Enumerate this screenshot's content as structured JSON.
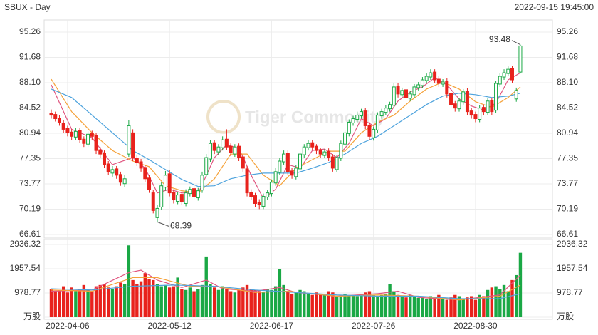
{
  "chart_data": [
    {
      "type": "candlestick",
      "title": "SBUX - Day",
      "subtitle": "2022-09-15 19:45:00",
      "watermark": "Tiger Commodity",
      "up_color": "#1aa845",
      "down_color": "#e8221c",
      "categories": [
        null,
        null,
        null,
        null,
        "2022-04-06",
        null,
        null,
        null,
        null,
        null,
        null,
        null,
        null,
        null,
        null,
        null,
        null,
        null,
        null,
        null,
        null,
        null,
        null,
        null,
        null,
        null,
        null,
        null,
        null,
        "2022-05-12",
        null,
        null,
        null,
        null,
        null,
        null,
        null,
        null,
        null,
        null,
        null,
        null,
        null,
        null,
        null,
        null,
        null,
        null,
        null,
        null,
        null,
        null,
        null,
        null,
        "2022-06-17",
        null,
        null,
        null,
        null,
        null,
        null,
        null,
        null,
        null,
        null,
        null,
        null,
        null,
        null,
        null,
        null,
        null,
        null,
        null,
        null,
        null,
        null,
        null,
        null,
        "2022-07-26",
        null,
        null,
        null,
        null,
        null,
        null,
        null,
        null,
        null,
        null,
        null,
        null,
        null,
        null,
        null,
        null,
        null,
        null,
        null,
        null,
        null,
        null,
        null,
        null,
        "2022-08-30",
        null,
        null,
        null,
        null,
        null,
        null,
        null,
        null,
        null,
        null,
        null
      ],
      "open": [
        83.8,
        83.6,
        83.1,
        82.4,
        81.6,
        81.1,
        80.4,
        81.3,
        80.1,
        79.4,
        80.9,
        80.6,
        78.6,
        78.1,
        76.6,
        75.3,
        75.9,
        75.1,
        73.8,
        78.0,
        81.0,
        77.4,
        76.9,
        76.1,
        74.6,
        72.5,
        69.0,
        70.5,
        73.3,
        75.2,
        72.6,
        71.3,
        72.3,
        71.0,
        72.4,
        73.1,
        71.8,
        72.9,
        75.1,
        77.3,
        79.6,
        78.3,
        78.9,
        80.1,
        79.1,
        78.0,
        79.1,
        77.6,
        75.9,
        72.6,
        72.1,
        71.2,
        70.6,
        71.9,
        72.4,
        73.9,
        75.4,
        76.9,
        78.1,
        75.6,
        74.8,
        75.9,
        77.9,
        78.9,
        79.6,
        79.1,
        78.6,
        77.8,
        78.4,
        77.6,
        75.8,
        77.4,
        79.4,
        80.9,
        82.4,
        82.9,
        83.4,
        84.1,
        82.1,
        80.3,
        81.4,
        83.4,
        83.9,
        84.4,
        84.9,
        87.6,
        86.4,
        87.1,
        85.9,
        86.4,
        87.4,
        87.7,
        88.4,
        88.9,
        89.6,
        88.6,
        87.9,
        88.3,
        86.6,
        85.1,
        84.4,
        85.4,
        86.9,
        84.1,
        83.6,
        82.9,
        84.6,
        83.9,
        85.6,
        84.2,
        87.9,
        88.9,
        89.4,
        90.1,
        85.8,
        89.6
      ],
      "high": [
        84.3,
        84.0,
        83.5,
        82.8,
        82.0,
        81.5,
        81.7,
        81.7,
        80.5,
        81.2,
        81.3,
        81.0,
        79.0,
        78.5,
        77.0,
        76.3,
        76.3,
        75.5,
        75.0,
        82.8,
        81.5,
        77.9,
        77.3,
        76.5,
        75.0,
        72.9,
        70.8,
        74.0,
        75.6,
        75.7,
        73.0,
        72.6,
        72.7,
        73.0,
        73.4,
        73.5,
        73.2,
        75.5,
        78.0,
        80.0,
        80.0,
        79.4,
        80.5,
        81.5,
        79.5,
        79.4,
        79.5,
        78.0,
        76.3,
        73.0,
        72.5,
        71.6,
        72.4,
        72.9,
        74.4,
        76.0,
        77.4,
        78.5,
        78.5,
        76.0,
        76.4,
        78.4,
        79.4,
        80.0,
        80.0,
        79.4,
        78.9,
        78.7,
        78.8,
        78.0,
        77.9,
        79.9,
        81.4,
        82.9,
        83.4,
        84.0,
        84.4,
        84.5,
        82.5,
        81.9,
        83.9,
        84.4,
        84.9,
        85.4,
        88.0,
        88.0,
        87.4,
        87.5,
        86.9,
        87.9,
        88.2,
        88.9,
        89.4,
        90.0,
        90.0,
        89.0,
        88.6,
        88.7,
        87.0,
        85.5,
        85.9,
        87.2,
        87.3,
        84.5,
        84.0,
        84.9,
        85.0,
        85.9,
        86.0,
        88.4,
        89.4,
        90.0,
        90.4,
        90.5,
        87.4,
        93.48
      ],
      "low": [
        83.0,
        82.6,
        82.0,
        81.0,
        80.5,
        80.0,
        80.0,
        79.6,
        79.0,
        79.0,
        80.0,
        78.0,
        77.5,
        76.0,
        75.0,
        74.8,
        74.5,
        73.5,
        73.3,
        77.6,
        77.0,
        76.3,
        75.5,
        74.0,
        72.5,
        69.6,
        68.39,
        70.1,
        72.8,
        72.0,
        71.0,
        70.9,
        70.8,
        70.6,
        72.0,
        71.6,
        71.4,
        72.5,
        74.7,
        76.9,
        78.0,
        77.9,
        78.5,
        78.6,
        77.7,
        77.6,
        77.0,
        75.5,
        72.0,
        71.5,
        70.5,
        70.2,
        70.2,
        71.5,
        72.0,
        73.5,
        75.0,
        76.5,
        75.0,
        74.5,
        74.4,
        75.5,
        77.5,
        78.5,
        78.5,
        78.0,
        77.5,
        77.4,
        77.0,
        75.5,
        75.4,
        77.0,
        79.0,
        80.5,
        82.0,
        82.5,
        83.0,
        81.5,
        80.0,
        79.9,
        81.0,
        83.0,
        83.5,
        84.0,
        84.5,
        86.0,
        86.0,
        85.5,
        85.5,
        86.0,
        87.0,
        87.3,
        88.0,
        88.5,
        88.0,
        87.5,
        87.5,
        86.0,
        84.5,
        84.0,
        84.0,
        85.0,
        83.5,
        83.0,
        82.5,
        82.5,
        83.5,
        83.5,
        83.5,
        83.8,
        87.5,
        88.5,
        89.0,
        88.0,
        85.4,
        89.4
      ],
      "close": [
        83.5,
        83.0,
        82.5,
        81.5,
        81.0,
        80.5,
        81.2,
        80.0,
        79.5,
        80.8,
        80.5,
        78.5,
        78.0,
        76.5,
        75.5,
        75.8,
        75.0,
        74.0,
        74.5,
        82.0,
        77.5,
        76.8,
        76.0,
        74.5,
        73.0,
        70.0,
        70.3,
        73.5,
        75.0,
        72.5,
        71.5,
        72.2,
        71.2,
        72.5,
        73.0,
        72.0,
        72.8,
        75.0,
        77.5,
        79.5,
        78.5,
        79.0,
        80.0,
        79.0,
        78.2,
        79.0,
        77.5,
        76.0,
        72.5,
        72.0,
        71.0,
        70.8,
        72.0,
        72.5,
        74.0,
        75.5,
        77.0,
        78.0,
        75.5,
        75.0,
        76.0,
        78.0,
        79.0,
        79.5,
        79.0,
        78.5,
        78.0,
        78.3,
        77.5,
        76.0,
        77.5,
        79.5,
        81.0,
        82.5,
        83.0,
        83.5,
        84.0,
        82.0,
        80.5,
        81.5,
        83.5,
        84.0,
        84.5,
        85.0,
        87.5,
        86.5,
        87.0,
        86.0,
        86.5,
        87.5,
        87.8,
        88.5,
        89.0,
        89.5,
        88.5,
        88.0,
        88.2,
        86.5,
        85.0,
        84.5,
        85.5,
        86.8,
        84.0,
        83.5,
        83.0,
        84.5,
        84.0,
        85.5,
        84.0,
        88.0,
        89.0,
        89.5,
        90.0,
        88.5,
        87.0,
        93.3
      ],
      "ylim": [
        66.61,
        95.26
      ],
      "yticks": [
        66.61,
        70.19,
        73.77,
        77.35,
        80.94,
        84.52,
        {
          "value": 88.1,
          "label": "88.10"
        },
        91.68,
        95.26
      ],
      "ma_lines": [
        {
          "color": "#e0557f",
          "x": [
            0,
            5,
            10,
            15,
            20,
            23,
            26,
            29,
            32,
            36,
            40,
            43,
            46,
            49,
            52,
            55,
            58,
            61,
            64,
            67,
            70,
            73,
            76,
            79,
            82,
            85,
            88,
            91,
            94,
            97,
            100,
            103,
            106,
            109,
            112,
            115
          ],
          "values": [
            87.8,
            81.5,
            80.3,
            76.5,
            77.5,
            76.0,
            72.5,
            73.0,
            72.5,
            72.4,
            77.5,
            79.3,
            78.8,
            75.0,
            71.7,
            73.0,
            76.5,
            76.0,
            78.5,
            78.7,
            77.5,
            79.5,
            83.0,
            82.0,
            83.0,
            85.5,
            86.8,
            87.5,
            88.8,
            87.8,
            85.8,
            84.8,
            84.2,
            85.2,
            88.5,
            89.5
          ]
        },
        {
          "color": "#f5a23a",
          "x": [
            0,
            5,
            10,
            15,
            20,
            24,
            28,
            32,
            36,
            40,
            44,
            48,
            52,
            56,
            60,
            64,
            68,
            72,
            76,
            80,
            84,
            88,
            92,
            96,
            100,
            104,
            108,
            112,
            115
          ],
          "values": [
            88.6,
            84.0,
            81.0,
            78.5,
            77.0,
            76.2,
            73.5,
            72.8,
            72.5,
            74.5,
            78.0,
            78.0,
            75.0,
            73.5,
            76.0,
            77.2,
            78.4,
            78.4,
            81.0,
            82.5,
            83.5,
            85.5,
            87.2,
            88.2,
            87.2,
            85.4,
            84.6,
            86.0,
            87.5
          ]
        },
        {
          "color": "#4ea3dd",
          "x": [
            0,
            5,
            10,
            15,
            20,
            24,
            28,
            32,
            36,
            40,
            44,
            48,
            52,
            56,
            60,
            64,
            68,
            72,
            76,
            80,
            84,
            88,
            92,
            96,
            100,
            104,
            108,
            112,
            115
          ],
          "values": [
            87.2,
            86.0,
            83.5,
            81.0,
            78.5,
            77.2,
            75.8,
            74.4,
            73.4,
            73.5,
            74.5,
            75.0,
            75.3,
            75.3,
            75.3,
            76.0,
            76.8,
            78.0,
            79.5,
            80.5,
            82.0,
            83.5,
            85.0,
            86.2,
            86.6,
            86.4,
            86.0,
            86.2,
            86.6
          ]
        }
      ]
    },
    {
      "type": "bar",
      "values": [
        1150,
        1050,
        1100,
        1250,
        1000,
        1200,
        1050,
        1150,
        1300,
        1100,
        1050,
        1250,
        1300,
        1350,
        1200,
        1150,
        1250,
        1400,
        1350,
        2900,
        1500,
        1350,
        1450,
        1780,
        1550,
        1500,
        1350,
        1250,
        1300,
        1200,
        1250,
        1600,
        1150,
        1100,
        1200,
        1050,
        1150,
        1300,
        2450,
        1350,
        1200,
        1100,
        1250,
        1150,
        1050,
        1000,
        1100,
        1200,
        1300,
        1150,
        1100,
        1050,
        1000,
        1150,
        1100,
        1250,
        1930,
        1300,
        1050,
        950,
        1000,
        1100,
        1050,
        950,
        900,
        1000,
        950,
        900,
        1050,
        1000,
        850,
        900,
        950,
        880,
        900,
        850,
        950,
        1000,
        1050,
        900,
        850,
        900,
        950,
        1350,
        1050,
        900,
        850,
        800,
        900,
        850,
        780,
        800,
        750,
        850,
        800,
        900,
        750,
        700,
        800,
        900,
        850,
        750,
        800,
        850,
        700,
        900,
        850,
        1100,
        1200,
        1250,
        1150,
        1300,
        1050,
        1500,
        1700,
        2600
      ],
      "ylim": [
        0,
        2936.32
      ],
      "yticks": [
        {
          "value": 0,
          "label": "万股"
        },
        978.77,
        1957.54,
        2936.32
      ],
      "ma_lines": [
        {
          "color": "#e0557f",
          "x": [
            0,
            10,
            19,
            22,
            26,
            32,
            38,
            42,
            50,
            56,
            60,
            70,
            80,
            85,
            90,
            100,
            110,
            115
          ],
          "values": [
            1050,
            1100,
            1800,
            1900,
            1500,
            1200,
            1500,
            1150,
            1050,
            1200,
            1000,
            850,
            950,
            1050,
            800,
            700,
            900,
            1700
          ]
        },
        {
          "color": "#f5a23a",
          "x": [
            0,
            10,
            20,
            26,
            34,
            40,
            50,
            58,
            70,
            80,
            90,
            100,
            110,
            115
          ],
          "values": [
            1100,
            1050,
            1600,
            1600,
            1250,
            1250,
            1000,
            1050,
            850,
            900,
            850,
            700,
            850,
            1300
          ]
        },
        {
          "color": "#4ea3dd",
          "x": [
            0,
            10,
            20,
            30,
            40,
            50,
            60,
            70,
            80,
            90,
            100,
            110,
            115
          ],
          "values": [
            1150,
            1100,
            1250,
            1300,
            1250,
            1100,
            1000,
            900,
            850,
            850,
            750,
            750,
            950
          ]
        }
      ]
    }
  ]
}
